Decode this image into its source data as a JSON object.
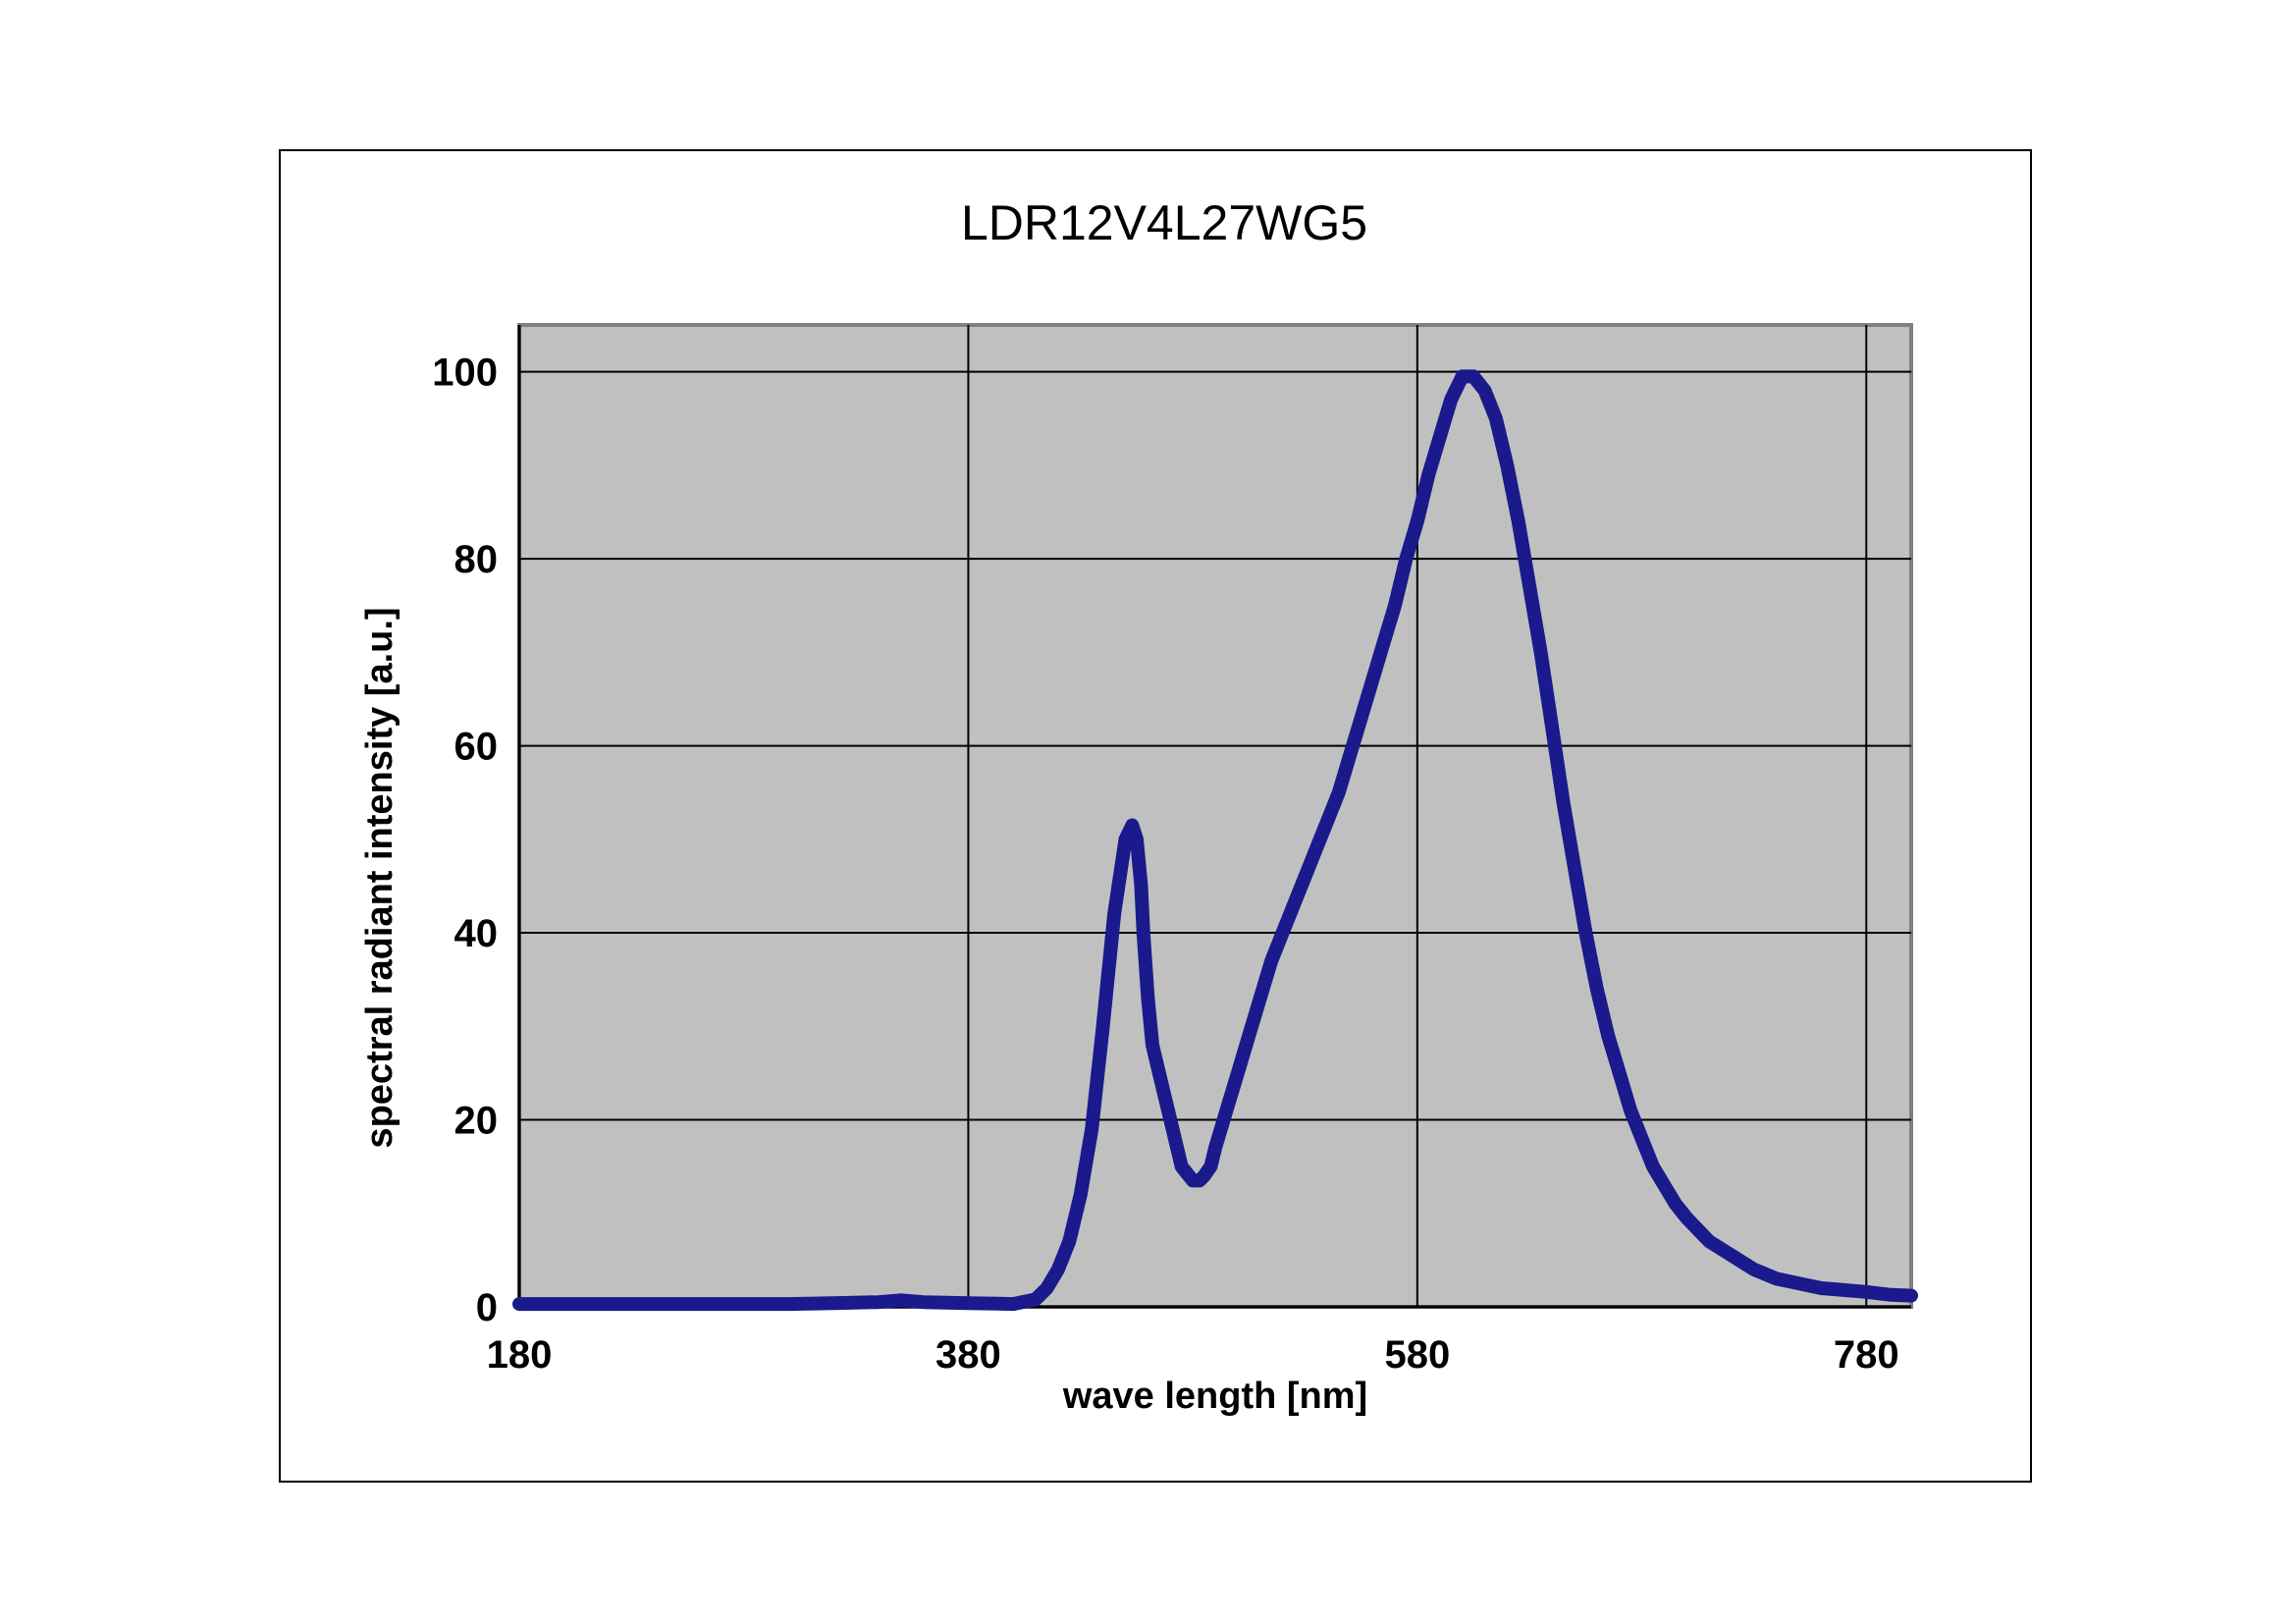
{
  "chart_data": {
    "type": "line",
    "title": "LDR12V4L27WG5",
    "xlabel": "wave length [nm]",
    "ylabel": "spectral radiant intensity [a.u.]",
    "xlim": [
      180,
      800
    ],
    "ylim": [
      0,
      105
    ],
    "x_ticks": [
      180,
      380,
      580,
      780
    ],
    "y_ticks": [
      0,
      20,
      40,
      60,
      80,
      100
    ],
    "x_tick_labels": [
      "180",
      "380",
      "580",
      "780"
    ],
    "y_tick_labels": [
      "0",
      "20",
      "40",
      "60",
      "80",
      "100"
    ],
    "grid": true,
    "legend": "none",
    "colors": {
      "plot_background": "#c0c0c0",
      "line": "#1a1a8c",
      "grid": "#000000"
    },
    "series": [
      {
        "x": [
          180,
          200,
          250,
          300,
          320,
          340,
          350,
          360,
          380,
          400,
          410,
          415,
          420,
          425,
          430,
          435,
          440,
          445,
          450,
          453,
          455,
          457,
          458,
          460,
          462,
          465,
          468,
          470,
          475,
          480,
          483,
          485,
          488,
          490,
          495,
          500,
          505,
          510,
          515,
          520,
          525,
          530,
          535,
          540,
          545,
          550,
          555,
          560,
          565,
          570,
          575,
          580,
          585,
          590,
          595,
          600,
          605,
          610,
          615,
          620,
          625,
          630,
          635,
          640,
          645,
          650,
          655,
          660,
          665,
          670,
          675,
          680,
          685,
          690,
          695,
          700,
          710,
          720,
          730,
          740,
          750,
          760,
          770,
          780,
          790,
          800
        ],
        "y": [
          0.3,
          0.3,
          0.3,
          0.3,
          0.4,
          0.5,
          0.7,
          0.5,
          0.4,
          0.3,
          0.8,
          2,
          4,
          7,
          12,
          19,
          30,
          42,
          50,
          51.5,
          50,
          45,
          40,
          33,
          28,
          25,
          22,
          20,
          15,
          13.5,
          13.5,
          14,
          15,
          17,
          21,
          25,
          29,
          33,
          37,
          40,
          43,
          46,
          49,
          52,
          55,
          59,
          63,
          67,
          71,
          75,
          80,
          84,
          89,
          93,
          97,
          99.5,
          99.5,
          98,
          95,
          90,
          84,
          77,
          70,
          62,
          54,
          47,
          40,
          34,
          29,
          25,
          21,
          18,
          15,
          13,
          11,
          9.5,
          7,
          5.5,
          4,
          3,
          2.5,
          2,
          1.8,
          1.6,
          1.3,
          1.2
        ]
      }
    ]
  }
}
